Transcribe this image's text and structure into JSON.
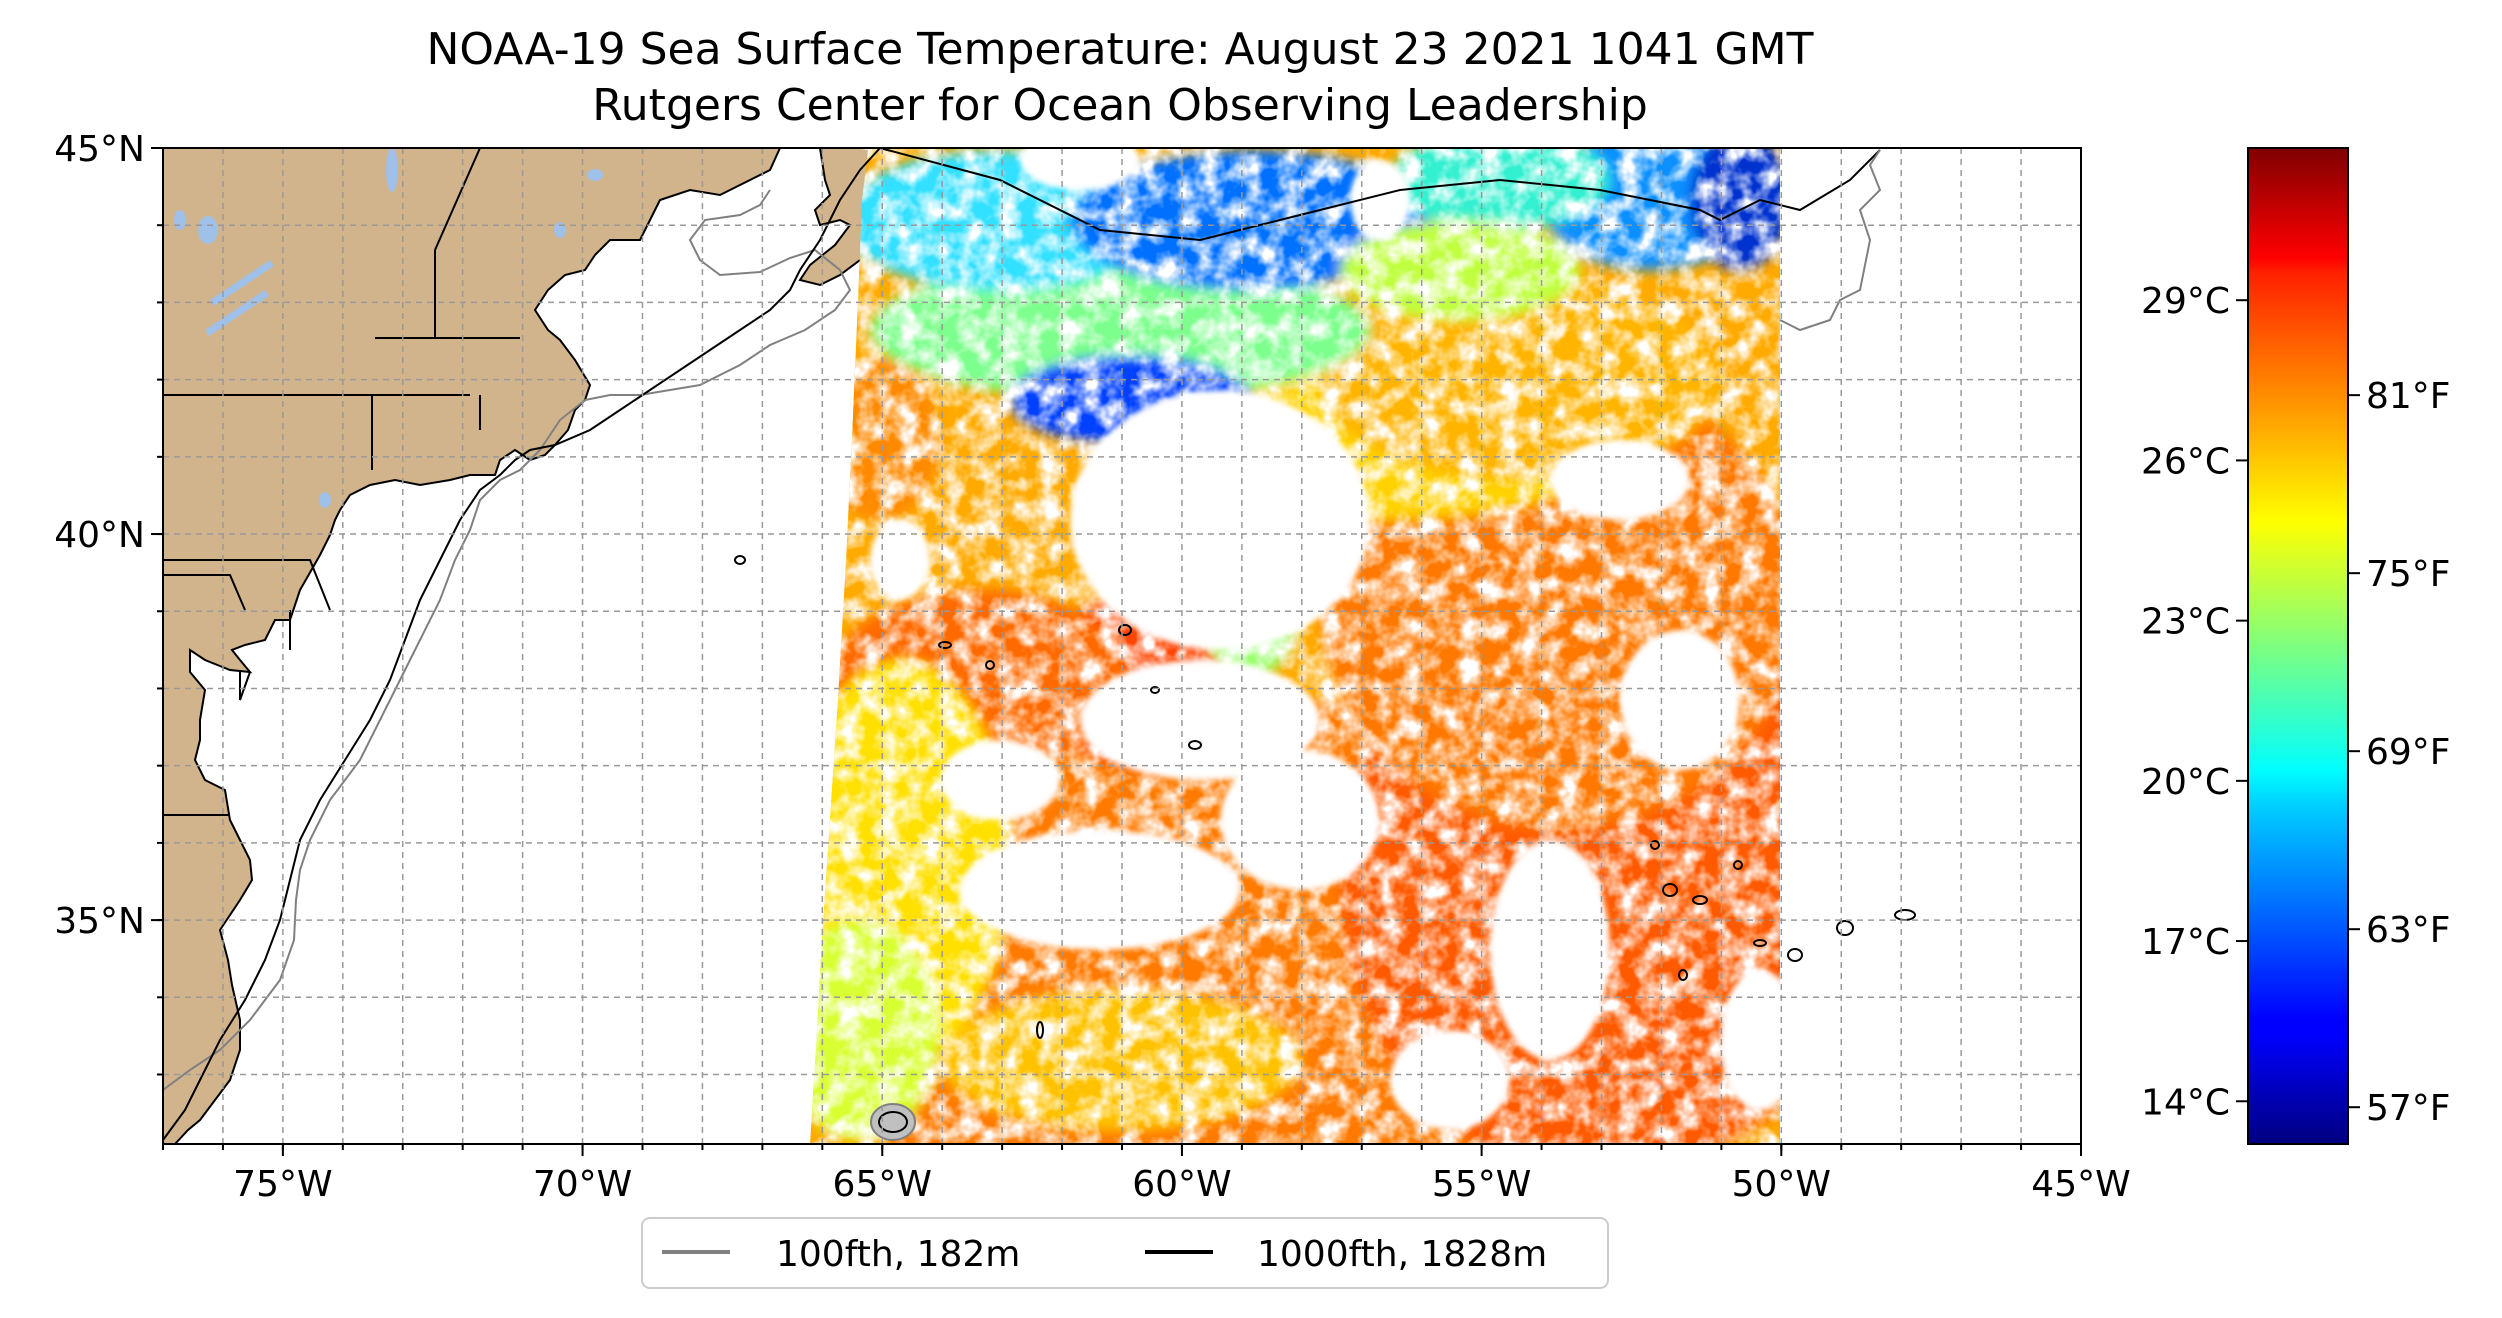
{
  "title": {
    "line1": "NOAA-19 Sea Surface Temperature: August 23 2021 1041 GMT",
    "line2": "Rutgers Center for Ocean Observing Leadership"
  },
  "map": {
    "lon_range": [
      -77,
      -45
    ],
    "lat_range": [
      32.1,
      45
    ],
    "lon_ticks": [
      {
        "lon": -75,
        "label": "75°W"
      },
      {
        "lon": -70,
        "label": "70°W"
      },
      {
        "lon": -65,
        "label": "65°W"
      },
      {
        "lon": -60,
        "label": "60°W"
      },
      {
        "lon": -55,
        "label": "55°W"
      },
      {
        "lon": -50,
        "label": "50°W"
      },
      {
        "lon": -45,
        "label": "45°W"
      }
    ],
    "lat_ticks": [
      {
        "lat": 45,
        "label": "45°N"
      },
      {
        "lat": 40,
        "label": "40°N"
      },
      {
        "lat": 35,
        "label": "35°N"
      }
    ],
    "grid_lon_step": 1,
    "grid_lat_step": 1,
    "grid": true,
    "colors": {
      "land": "#d2b48c",
      "lakes": "#9fc0e8",
      "isobath_100": "#808080",
      "isobath_1000": "#000000"
    }
  },
  "colorbar": {
    "colormap": "jet",
    "celsius_ticks": [
      {
        "value": 29,
        "label": "29°C"
      },
      {
        "value": 26,
        "label": "26°C"
      },
      {
        "value": 23,
        "label": "23°C"
      },
      {
        "value": 20,
        "label": "20°C"
      },
      {
        "value": 17,
        "label": "17°C"
      },
      {
        "value": 14,
        "label": "14°C"
      }
    ],
    "fahrenheit_ticks": [
      {
        "value": 81,
        "label": "81°F"
      },
      {
        "value": 75,
        "label": "75°F"
      },
      {
        "value": 69,
        "label": "69°F"
      },
      {
        "value": 63,
        "label": "63°F"
      },
      {
        "value": 57,
        "label": "57°F"
      }
    ]
  },
  "legend": {
    "items": [
      {
        "label": "100fth, 182m",
        "color": "#808080"
      },
      {
        "label": "1000fth, 1828m",
        "color": "#000000"
      }
    ]
  }
}
